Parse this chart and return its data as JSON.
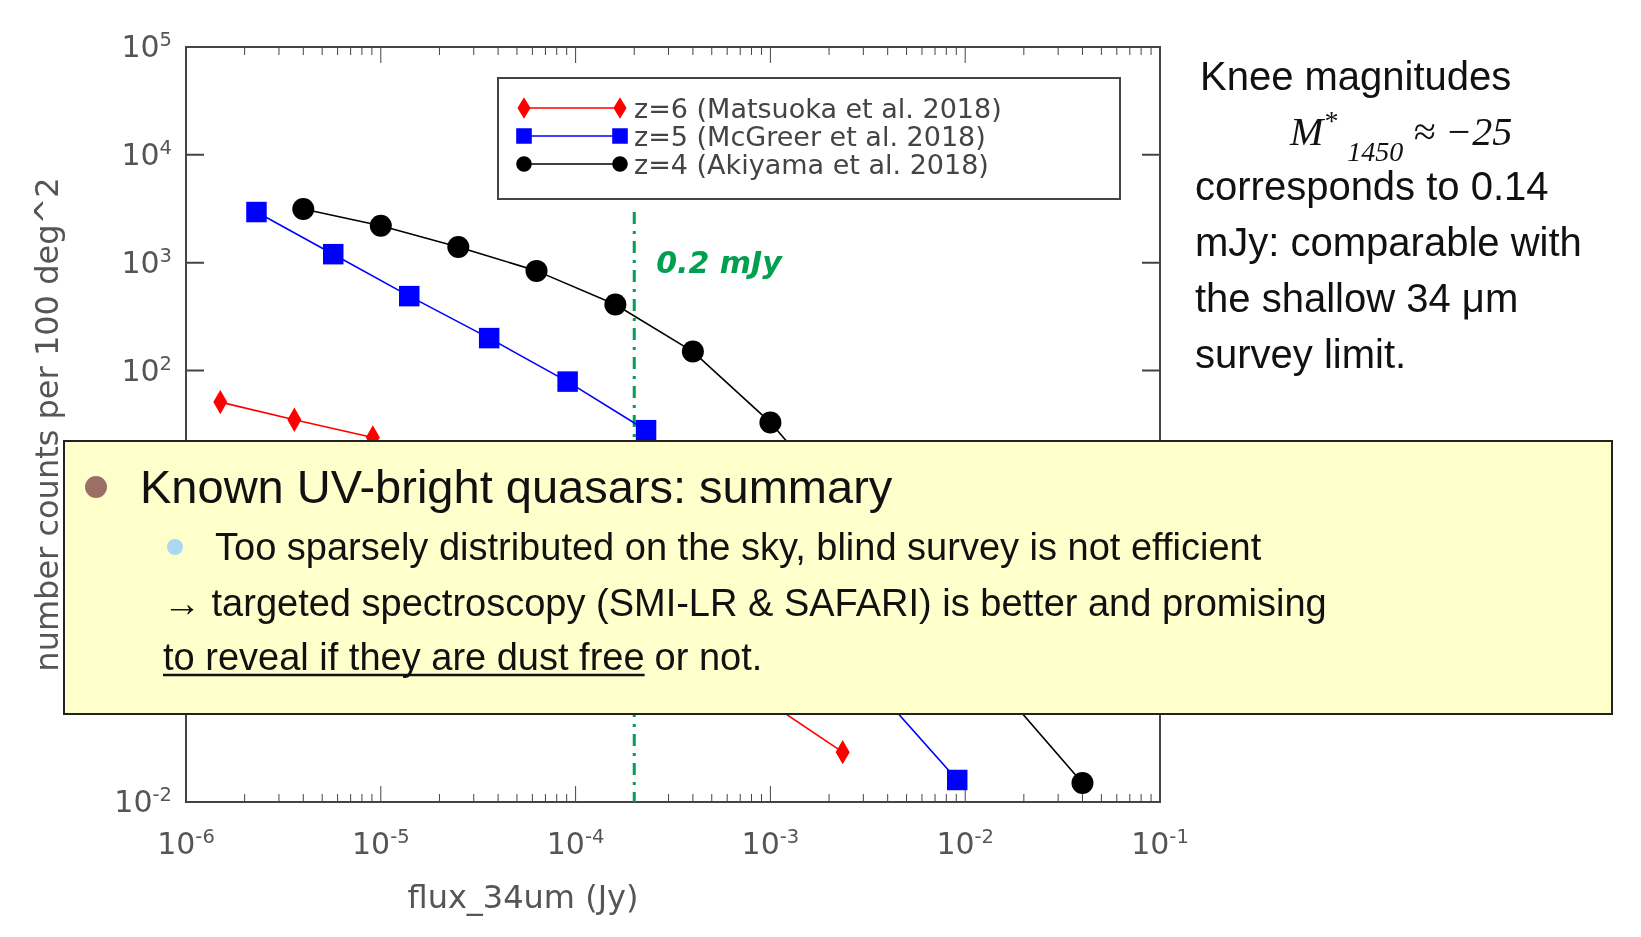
{
  "chart_data": {
    "type": "line",
    "xlabel": "flux_34um (Jy)",
    "ylabel": "number counts per 100 deg^2",
    "log": "xy",
    "xlim": [
      1e-06,
      0.1
    ],
    "ylim": [
      0.01,
      100000
    ],
    "xticks": [
      {
        "value": 1e-06,
        "label": "10$^{-6}$"
      },
      {
        "value": 1e-05,
        "label": "10$^{-5}$"
      },
      {
        "value": 0.0001,
        "label": "10$^{-4}$"
      },
      {
        "value": 0.001,
        "label": "10$^{-3}$"
      },
      {
        "value": 0.01,
        "label": "10$^{-2}$"
      },
      {
        "value": 0.1,
        "label": "10$^{-1}$"
      }
    ],
    "yticks": [
      {
        "value": 0.01,
        "label": "10$^{-2}$"
      },
      {
        "value": 100,
        "label": "10$^{2}$"
      },
      {
        "value": 1000,
        "label": "10$^{3}$"
      },
      {
        "value": 10000,
        "label": "10$^{4}$"
      },
      {
        "value": 100000,
        "label": "10$^{5}$"
      }
    ],
    "legend": "top right",
    "grid": false,
    "line_style": "solid",
    "series": [
      {
        "name": "z=6 (Matsuoka et al. 2018)",
        "color": "#ff0000",
        "marker": "diamond",
        "x": [
          1.5e-06,
          3.6e-06,
          9.1e-06,
          0.00235
        ],
        "values": [
          51,
          35,
          24,
          0.029
        ]
      },
      {
        "name": "z=5 (McGreer et al. 2018)",
        "color": "#0000ff",
        "marker": "square",
        "x": [
          2.3e-06,
          5.7e-06,
          1.4e-05,
          3.6e-05,
          9.1e-05,
          0.00023,
          0.0091
        ],
        "values": [
          2950,
          1200,
          490,
          200,
          79,
          28,
          0.016
        ]
      },
      {
        "name": "z=4 (Akiyama et al. 2018)",
        "color": "#000000",
        "marker": "circle",
        "x": [
          4e-06,
          1e-05,
          2.5e-05,
          6.3e-05,
          0.00016,
          0.0004,
          0.001,
          0.04
        ],
        "values": [
          3150,
          2200,
          1400,
          840,
          410,
          150,
          33,
          0.015
        ]
      }
    ],
    "ref_lines": [
      {
        "axis": "x",
        "value": 0.0002,
        "label": "0.2 mJy",
        "color": "#00a050",
        "line_style": "dashed"
      }
    ],
    "annotations": [
      "Knee magnitudes",
      "M$^{*}$$_{1450}$ ≈ −25",
      "corresponds to 0.14",
      "mJy: comparable with",
      "the shallow 34 μm",
      "survey limit.",
      "Known UV-bright quasars: summary",
      "Too sparsely distributed on the sky, blind survey is not efficient",
      "→ targeted spectroscopy (SMI-LR & SAFARI) is better and promising",
      "to reveal if they are dust free",
      "or not."
    ]
  }
}
